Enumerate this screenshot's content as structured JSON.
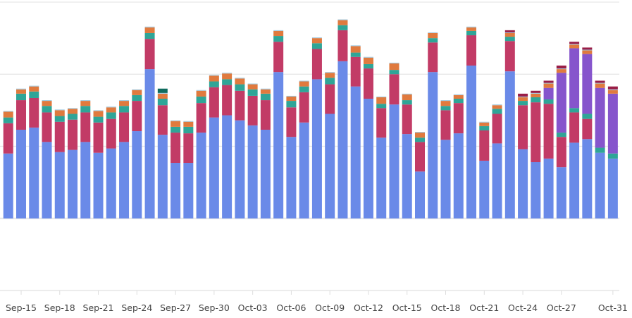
{
  "chart_data": {
    "type": "bar",
    "stacked": true,
    "title": "",
    "xlabel": "",
    "ylabel": "",
    "ylim": [
      -100,
      300
    ],
    "y_gridlines": [
      -100,
      0,
      100,
      200,
      300
    ],
    "y_tick_labels_shown": false,
    "grid": true,
    "legend": "none",
    "categories": [
      "Sep-14",
      "Sep-15",
      "Sep-16",
      "Sep-17",
      "Sep-18",
      "Sep-19",
      "Sep-20",
      "Sep-21",
      "Sep-22",
      "Sep-23",
      "Sep-24",
      "Sep-25",
      "Sep-26",
      "Sep-27",
      "Sep-28",
      "Sep-29",
      "Sep-30",
      "Oct-01",
      "Oct-02",
      "Oct-03",
      "Oct-04",
      "Oct-05",
      "Oct-06",
      "Oct-07",
      "Oct-08",
      "Oct-09",
      "Oct-10",
      "Oct-11",
      "Oct-12",
      "Oct-13",
      "Oct-14",
      "Oct-15",
      "Oct-16",
      "Oct-17",
      "Oct-18",
      "Oct-19",
      "Oct-20",
      "Oct-21",
      "Oct-22",
      "Oct-23",
      "Oct-24",
      "Oct-25",
      "Oct-26",
      "Oct-27",
      "Oct-28",
      "Oct-29",
      "Oct-30",
      "Oct-31"
    ],
    "x_tick_labels": [
      "Sep-15",
      "Sep-18",
      "Sep-21",
      "Sep-24",
      "Sep-27",
      "Sep-30",
      "Oct-03",
      "Oct-06",
      "Oct-09",
      "Oct-12",
      "Oct-15",
      "Oct-18",
      "Oct-21",
      "Oct-24",
      "Oct-27",
      "Oct-31"
    ],
    "series": [
      {
        "color": "#6a8ae8",
        "values": [
          90,
          123,
          126,
          106,
          92,
          95,
          106,
          91,
          97,
          106,
          121,
          207,
          116,
          77,
          77,
          119,
          140,
          143,
          136,
          129,
          123,
          203,
          113,
          133,
          193,
          145,
          218,
          183,
          166,
          112,
          158,
          117,
          65,
          203,
          109,
          118,
          212,
          80,
          104,
          204,
          96,
          78,
          83,
          71,
          105,
          110,
          91,
          83
        ]
      },
      {
        "color": "#c23b66",
        "values": [
          42,
          41,
          41,
          41,
          42,
          42,
          41,
          42,
          41,
          41,
          42,
          42,
          41,
          42,
          41,
          41,
          42,
          42,
          41,
          41,
          41,
          42,
          41,
          42,
          42,
          41,
          43,
          41,
          42,
          41,
          42,
          41,
          41,
          41,
          41,
          42,
          42,
          42,
          41,
          42,
          61,
          83,
          76,
          42,
          42,
          28,
          0,
          0
        ]
      },
      {
        "color": "#2fa597",
        "values": [
          8,
          9,
          9,
          9,
          8,
          8,
          9,
          8,
          9,
          9,
          8,
          8,
          9,
          8,
          9,
          9,
          8,
          8,
          9,
          9,
          9,
          8,
          9,
          8,
          8,
          9,
          7,
          6,
          6,
          6,
          6,
          6,
          6,
          6,
          6,
          6,
          6,
          6,
          7,
          6,
          6,
          7,
          6,
          6,
          6,
          7,
          7,
          7
        ]
      },
      {
        "color": "#8655cc",
        "values": [
          0,
          0,
          0,
          0,
          0,
          0,
          0,
          0,
          0,
          0,
          0,
          0,
          0,
          0,
          0,
          0,
          0,
          0,
          0,
          0,
          0,
          0,
          0,
          0,
          0,
          0,
          0,
          0,
          0,
          0,
          0,
          0,
          0,
          0,
          0,
          0,
          0,
          0,
          0,
          0,
          0,
          0,
          16,
          83,
          83,
          83,
          83,
          83
        ]
      },
      {
        "color": "#e07a3e",
        "values": [
          8,
          6,
          7,
          7,
          8,
          7,
          7,
          8,
          7,
          7,
          7,
          8,
          7,
          8,
          7,
          8,
          8,
          8,
          8,
          7,
          6,
          7,
          6,
          7,
          7,
          7,
          7,
          9,
          9,
          9,
          9,
          8,
          7,
          7,
          7,
          5,
          5,
          5,
          5,
          5,
          5,
          5,
          6,
          5,
          5,
          5,
          6,
          5
        ]
      },
      {
        "color": "#9ec9e0",
        "values": [
          1,
          1,
          1,
          1,
          1,
          1,
          1,
          1,
          1,
          1,
          1,
          1,
          1,
          1,
          1,
          1,
          1,
          1,
          1,
          1,
          1,
          1,
          1,
          1,
          1,
          1,
          1,
          1,
          1,
          1,
          1,
          1,
          1,
          1,
          1,
          1,
          1,
          1,
          1,
          1,
          1,
          1,
          1,
          1,
          1,
          1,
          1,
          1
        ]
      },
      {
        "color": "#0e6b5e",
        "values": [
          0,
          0,
          0,
          0,
          0,
          0,
          0,
          0,
          0,
          0,
          0,
          0,
          6,
          0,
          0,
          0,
          0,
          0,
          0,
          0,
          0,
          0,
          0,
          0,
          0,
          0,
          0,
          0,
          0,
          0,
          0,
          0,
          0,
          0,
          0,
          0,
          0,
          0,
          0,
          0,
          0,
          0,
          0,
          0,
          0,
          0,
          0,
          0
        ]
      },
      {
        "color": "#9a1e47",
        "values": [
          0,
          0,
          0,
          0,
          0,
          0,
          0,
          0,
          0,
          0,
          0,
          0,
          0,
          0,
          0,
          0,
          0,
          0,
          0,
          0,
          0,
          0,
          0,
          0,
          0,
          0,
          0,
          0,
          0,
          0,
          0,
          0,
          0,
          0,
          0,
          0,
          0,
          0,
          0,
          3,
          4,
          3,
          3,
          4,
          3,
          3,
          3,
          4
        ]
      }
    ]
  }
}
